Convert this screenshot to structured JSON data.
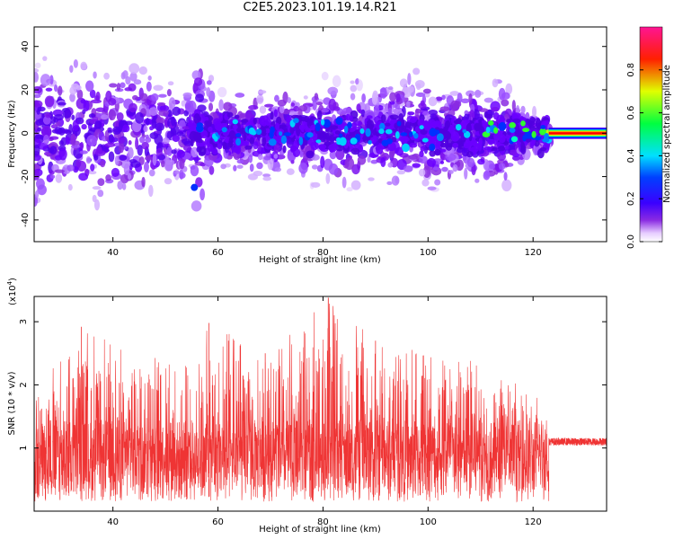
{
  "title": "C2E5.2023.101.19.14.R21",
  "chart_data": [
    {
      "type": "heatmap",
      "title": "C2E5.2023.101.19.14.R21",
      "xlabel": "Height of straight line (km)",
      "ylabel": "Frequency (Hz)",
      "xlim": [
        25,
        134
      ],
      "ylim": [
        -50,
        49
      ],
      "xticks": [
        40,
        60,
        80,
        100,
        120
      ],
      "yticks": [
        -40,
        -20,
        0,
        20,
        40
      ],
      "colorbar": {
        "label": "Normalized spectral amplitude",
        "range": [
          0,
          1
        ],
        "ticks": [
          "0.0",
          "0.2",
          "0.4",
          "0.6",
          "0.8"
        ],
        "colors": [
          "#ffffff",
          "#e6ccff",
          "#8a2be2",
          "#5a00ff",
          "#0000ff",
          "#00ffff",
          "#00ff00",
          "#ffff00",
          "#ff0000",
          "#ff1493"
        ]
      },
      "description_values": {
        "spread_hz_by_height": [
          {
            "x": 25,
            "half_width": 35
          },
          {
            "x": 45,
            "half_width": 30
          },
          {
            "x": 55,
            "half_width": 20
          },
          {
            "x": 56,
            "half_width": 42
          },
          {
            "x": 60,
            "half_width": 18
          },
          {
            "x": 80,
            "half_width": 22
          },
          {
            "x": 100,
            "half_width": 25
          },
          {
            "x": 115,
            "half_width": 22
          },
          {
            "x": 123,
            "half_width": 6
          }
        ],
        "dc_line": {
          "x_start": 123,
          "x_end": 134,
          "y": 0
        }
      }
    },
    {
      "type": "line",
      "xlabel": "Height of straight line (km)",
      "ylabel": "SNR (10 * v/v)",
      "ylabel_multiplier": "(x10",
      "ylabel_exponent": "4",
      "ylabel_multiplier_close": ")",
      "xlim": [
        25,
        134
      ],
      "ylim": [
        0,
        3.4
      ],
      "xticks": [
        40,
        60,
        80,
        100,
        120
      ],
      "yticks": [
        1,
        2,
        3
      ],
      "series_color": "#ef3434",
      "envelope": [
        {
          "x": 25,
          "max": 1.9
        },
        {
          "x": 34,
          "max": 2.9
        },
        {
          "x": 45,
          "max": 2.5
        },
        {
          "x": 56,
          "max": 2.4
        },
        {
          "x": 58,
          "max": 3.0
        },
        {
          "x": 70,
          "max": 2.5
        },
        {
          "x": 81,
          "max": 3.4
        },
        {
          "x": 90,
          "max": 2.7
        },
        {
          "x": 100,
          "max": 2.5
        },
        {
          "x": 110,
          "max": 2.4
        },
        {
          "x": 123,
          "max": 1.7
        }
      ],
      "tail": {
        "x_start": 123,
        "x_end": 134,
        "level": 1.1
      }
    }
  ]
}
